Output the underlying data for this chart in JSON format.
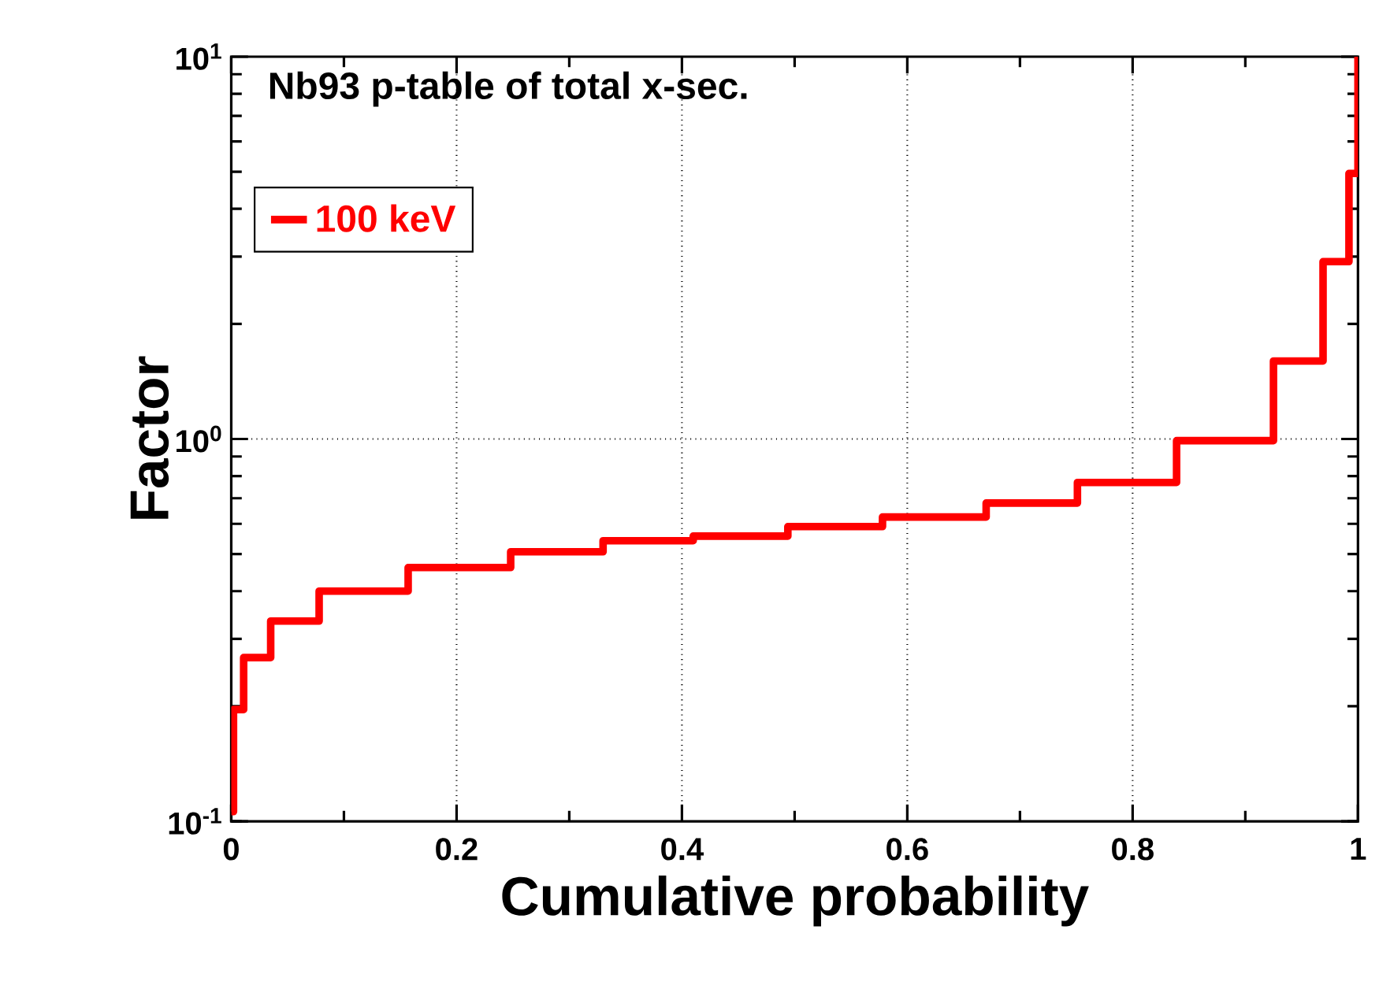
{
  "chart_data": {
    "type": "step",
    "title": "Nb93 p-table of total x-sec.",
    "xlabel": "Cumulative probability",
    "ylabel": "Factor",
    "series": [
      {
        "name": "100 keV",
        "color": "#ff0000",
        "x": [
          0,
          0.002,
          0.011,
          0.035,
          0.078,
          0.157,
          0.248,
          0.33,
          0.41,
          0.494,
          0.578,
          0.67,
          0.751,
          0.839,
          0.925,
          0.969,
          0.992,
          1.0
        ],
        "values": [
          0.106,
          0.196,
          0.268,
          0.334,
          0.4,
          0.461,
          0.507,
          0.542,
          0.557,
          0.59,
          0.625,
          0.68,
          0.77,
          0.99,
          1.6,
          2.91,
          4.95,
          10
        ]
      }
    ],
    "xlim": [
      0,
      1
    ],
    "ylim": [
      0.1,
      10
    ],
    "log": "y",
    "xticks": [
      0,
      0.2,
      0.4,
      0.6,
      0.8,
      1
    ],
    "yticks": [
      {
        "value": 0.1,
        "label": "10$^{-1}$"
      },
      {
        "value": 1,
        "label": "10$^{0}$"
      },
      {
        "value": 10,
        "label": "10$^{1}$"
      }
    ],
    "grid": true,
    "legend": "top left",
    "line_style": "solid",
    "marker": "none"
  }
}
